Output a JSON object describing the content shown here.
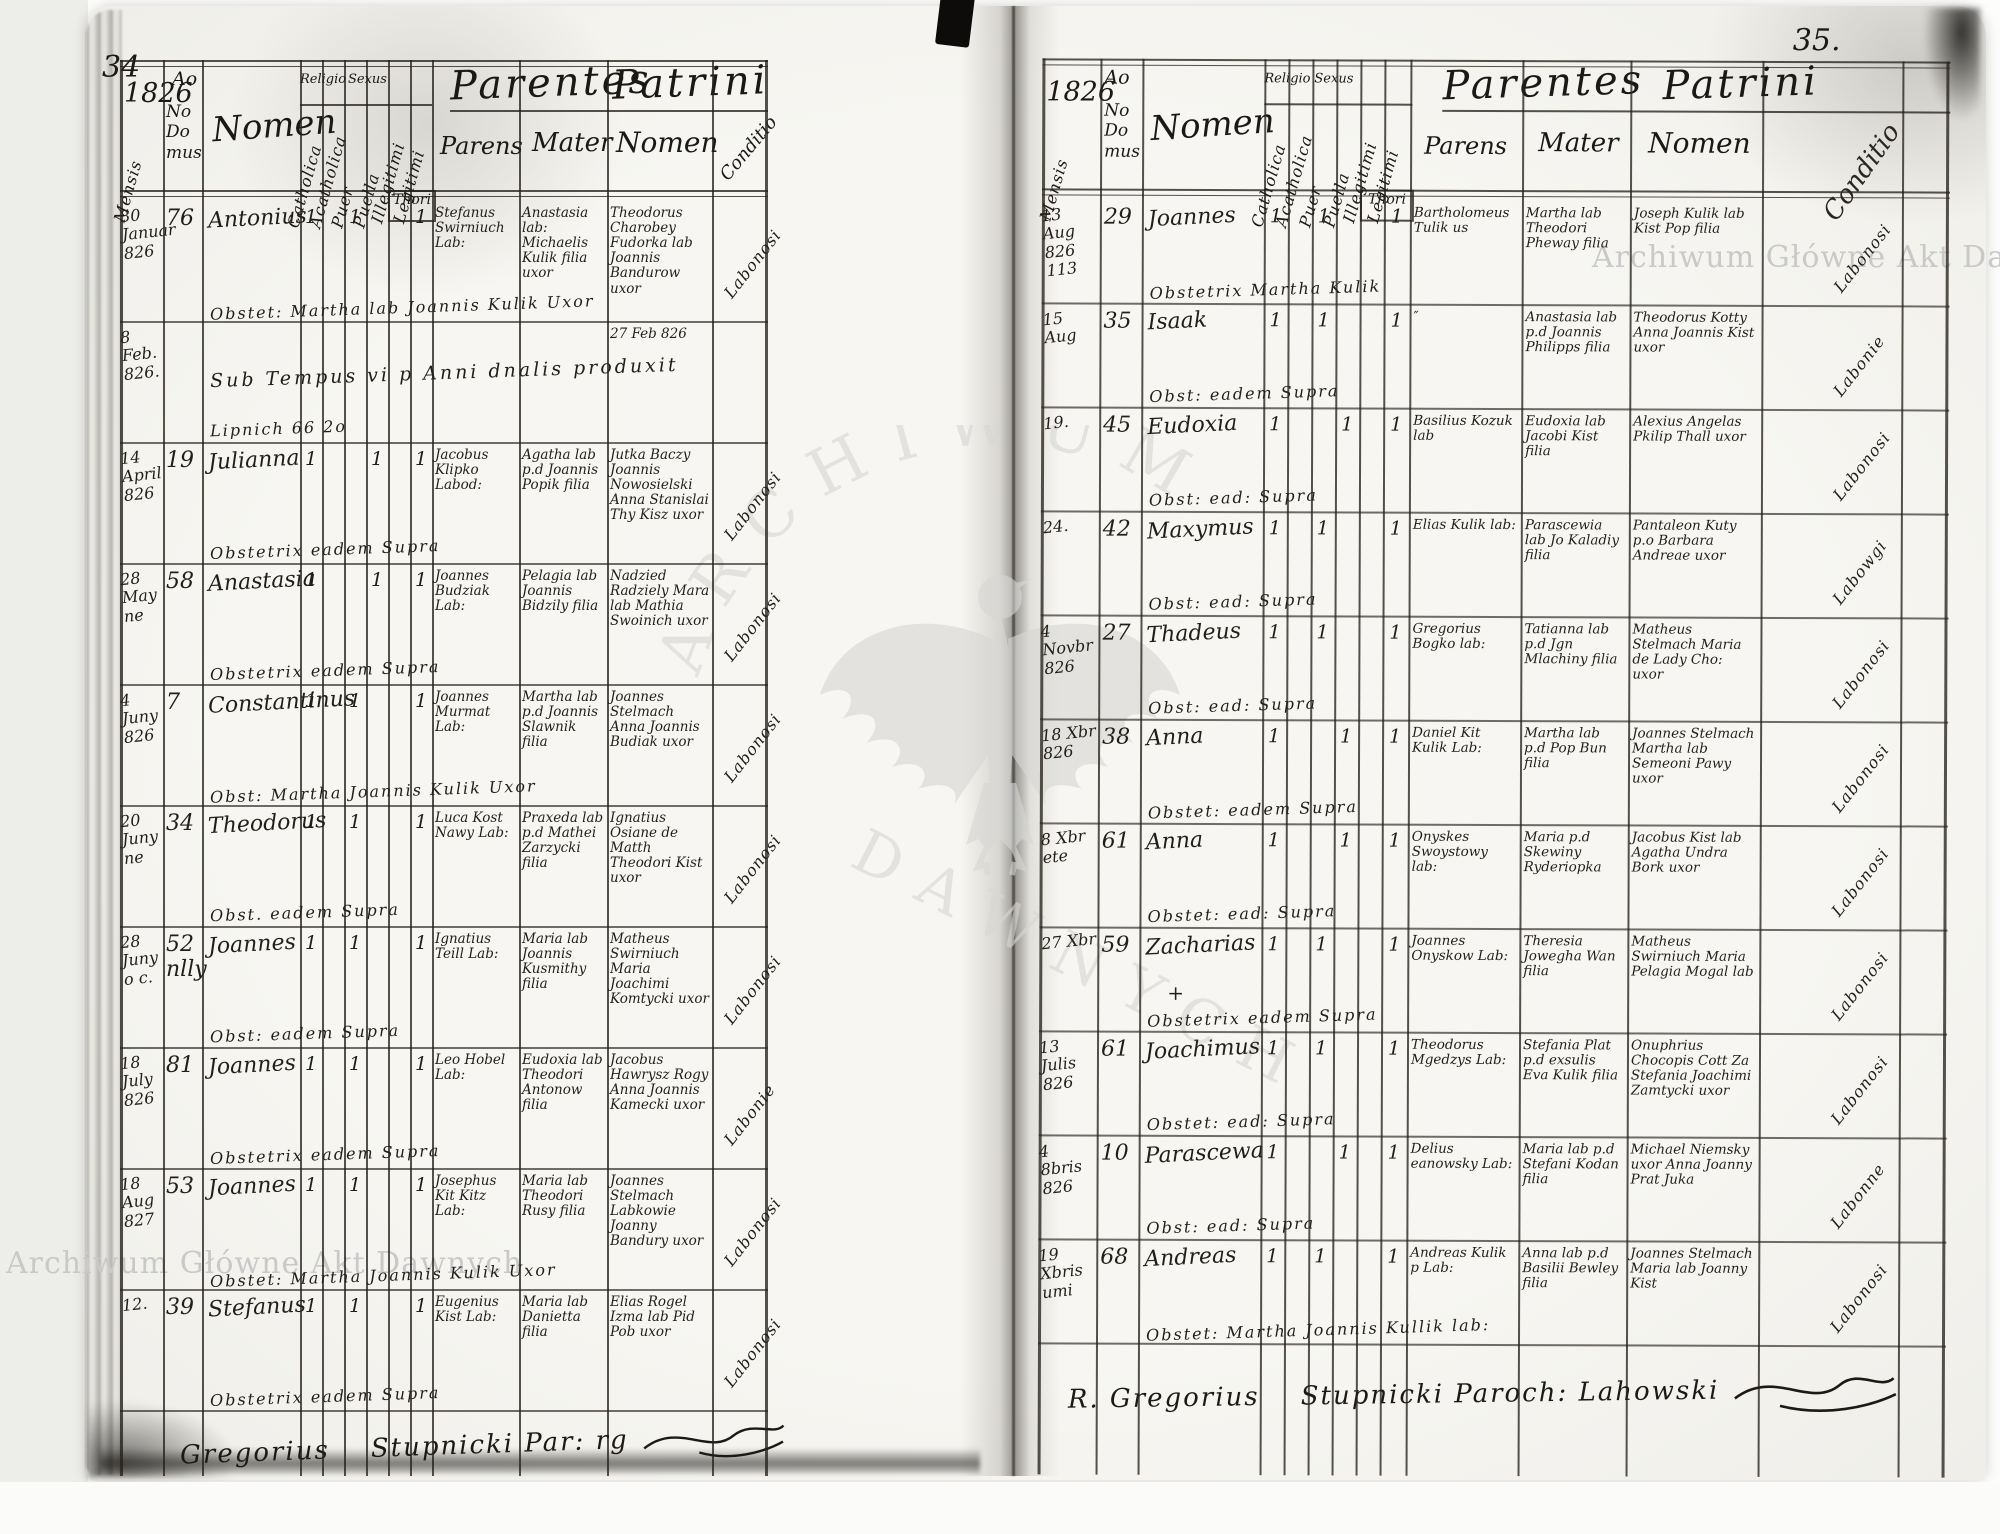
{
  "header": {
    "year": "1826",
    "anno": "Ao",
    "mensis": "Mensis",
    "domus": "No\nDo\nmus",
    "nomen": "Nomen",
    "religio": "Religio",
    "catholica": "Catholica",
    "acatholica": "Acatholica",
    "sexus": "Sexus",
    "puer": "Puer",
    "puella": "Puella",
    "illegitimi": "Illegitimi",
    "legitimi": "Legitimi",
    "thori": "Thori",
    "parentes": "Parentes",
    "parens": "Parens",
    "mater": "Mater",
    "patrini": "Patrini",
    "nomen2": "Nomen",
    "conditio": "Conditio"
  },
  "watermarks": {
    "right_text": "Archiwum Główne Akt Dawnych",
    "bottom_left_text": "Archiwum Główne Akt Dawnych",
    "logo_top": "ARCHIWUM",
    "logo_bottom": "DAWNYCH",
    "color": "#c9c9c9"
  },
  "left_page": {
    "page_number": "34",
    "signature_name": "Gregorius",
    "signature_rest": "Stupnicki Par: rg",
    "entries": [
      {
        "date": "30\nJanuar\n826",
        "house": "76",
        "name": "Antonius",
        "cross": "",
        "marks": [
          "1",
          "",
          "1",
          "",
          "",
          "1"
        ],
        "father": "Stefanus Swirniuch Lab:",
        "mother": "Anastasia lab: Michaelis Kulik filia uxor",
        "patrini": "Theodorus Charobey Fudorka lab Joannis Bandurow uxor",
        "conditio": "Labonosi",
        "note": "Obstet: Martha lab Joannis Kulik Uxor",
        "wide_note": ""
      },
      {
        "date": "8 Feb.\n826.",
        "house": "",
        "name": "",
        "cross": "",
        "marks": [
          "",
          "",
          "",
          "",
          "",
          ""
        ],
        "father": "",
        "mother": "",
        "patrini": "27 Feb 826",
        "conditio": "",
        "note": "Lipnich 66 2o",
        "wide_note": "Sub Tempus vi p Anni dnalis produxit"
      },
      {
        "date": "14\nApril\n826",
        "house": "19",
        "name": "Julianna",
        "cross": "",
        "marks": [
          "1",
          "",
          "",
          "1",
          "",
          "1"
        ],
        "father": "Jacobus Klipko Labod:",
        "mother": "Agatha lab p.d Joannis Popik filia",
        "patrini": "Jutka Baczy Joannis Nowosielski Anna Stanislai Thy Kisz uxor",
        "conditio": "Labonosi",
        "note": "Obstetrix eadem Supra",
        "wide_note": ""
      },
      {
        "date": "28\nMay\nne",
        "house": "58",
        "name": "Anastasia",
        "cross": "",
        "marks": [
          "1",
          "",
          "",
          "1",
          "",
          "1"
        ],
        "father": "Joannes Budziak Lab:",
        "mother": "Pelagia lab Joannis Bidzily filia",
        "patrini": "Nadzied Radziely Mara lab Mathia Swoinich uxor",
        "conditio": "Labonosi",
        "note": "Obstetrix eadem Supra",
        "wide_note": ""
      },
      {
        "date": "4\nJuny\n826",
        "house": "7",
        "name": "Constantinus",
        "cross": "",
        "marks": [
          "1",
          "",
          "1",
          "",
          "",
          "1"
        ],
        "father": "Joannes Murmat Lab:",
        "mother": "Martha lab p.d Joannis Slawnik filia",
        "patrini": "Joannes Stelmach Anna Joannis Budiak uxor",
        "conditio": "Labonosi",
        "note": "Obst: Martha Joannis Kulik Uxor",
        "wide_note": ""
      },
      {
        "date": "20\nJuny\nne",
        "house": "34",
        "name": "Theodorus",
        "cross": "",
        "marks": [
          "1",
          "",
          "1",
          "",
          "",
          "1"
        ],
        "father": "Luca Kost Nawy Lab:",
        "mother": "Praxeda lab p.d Mathei Zarzycki filia",
        "patrini": "Ignatius Osiane de Matth Theodori Kist uxor",
        "conditio": "Labonosi",
        "note": "Obst. eadem Supra",
        "wide_note": ""
      },
      {
        "date": "28\nJuny\no c.",
        "house": "52\nnlly",
        "name": "Joannes",
        "cross": "",
        "marks": [
          "1",
          "",
          "1",
          "",
          "",
          "1"
        ],
        "father": "Ignatius Teill Lab:",
        "mother": "Maria lab Joannis Kusmithy filia",
        "patrini": "Matheus Swirniuch Maria Joachimi Komtycki uxor",
        "conditio": "Labonosi",
        "note": "Obst: eadem Supra",
        "wide_note": ""
      },
      {
        "date": "18\nJuly\n826",
        "house": "81",
        "name": "Joannes",
        "cross": "",
        "marks": [
          "1",
          "",
          "1",
          "",
          "",
          "1"
        ],
        "father": "Leo Hobel Lab:",
        "mother": "Eudoxia lab Theodori Antonow filia",
        "patrini": "Jacobus Hawrysz Rogy Anna Joannis Kamecki uxor",
        "conditio": "Labonie",
        "note": "Obstetrix eadem Supra",
        "wide_note": ""
      },
      {
        "date": "18 Aug\n827",
        "house": "53",
        "name": "Joannes",
        "cross": "",
        "marks": [
          "1",
          "",
          "1",
          "",
          "",
          "1"
        ],
        "father": "Josephus Kit Kitz Lab:",
        "mother": "Maria lab Theodori Rusy filia",
        "patrini": "Joannes Stelmach Labkowie Joanny Bandury uxor",
        "conditio": "Labonosi",
        "note": "Obstet: Martha Joannis Kulik Uxor",
        "wide_note": ""
      },
      {
        "date": "12.",
        "house": "39",
        "name": "Stefanus",
        "cross": "",
        "marks": [
          "1",
          "",
          "1",
          "",
          "",
          "1"
        ],
        "father": "Eugenius Kist Lab:",
        "mother": "Maria lab Danietta filia",
        "patrini": "Elias Rogel Izma lab Pid Pob uxor",
        "conditio": "Labonosi",
        "note": "Obstetrix eadem Supra",
        "wide_note": ""
      }
    ]
  },
  "right_page": {
    "page_number": "35.",
    "signature_name": "R. Gregorius",
    "signature_rest": "Stupnicki Paroch: Lahowski",
    "entries": [
      {
        "date": "13 Aug\n826\n113",
        "house": "29",
        "name": "Joannes",
        "cross": "",
        "marks": [
          "1",
          "",
          "1",
          "",
          "",
          "1"
        ],
        "father": "Bartholomeus Tulik us",
        "mother": "Martha lab Theodori Pheway filia",
        "patrini": "Joseph Kulik lab Kist Pop filia",
        "conditio": "Labonosi",
        "note": "Obstetrix Martha Kulik",
        "wide_note": ""
      },
      {
        "date": "15\nAug",
        "house": "35",
        "name": "Isaak",
        "cross": "",
        "marks": [
          "1",
          "",
          "1",
          "",
          "",
          "1"
        ],
        "father": "″",
        "mother": "Anastasia lab p.d Joannis Philipps filia",
        "patrini": "Theodorus Kotty Anna Joannis Kist uxor",
        "conditio": "Labonie",
        "note": "Obst: eadem Supra",
        "wide_note": ""
      },
      {
        "date": "19.",
        "house": "45",
        "name": "Eudoxia",
        "cross": "",
        "marks": [
          "1",
          "",
          "",
          "1",
          "",
          "1"
        ],
        "father": "Basilius Kozuk lab",
        "mother": "Eudoxia lab Jacobi Kist filia",
        "patrini": "Alexius Angelas Pkilip Thall uxor",
        "conditio": "Labonosi",
        "note": "Obst: ead: Supra",
        "wide_note": ""
      },
      {
        "date": "24.",
        "house": "42",
        "name": "Maxymus",
        "cross": "",
        "marks": [
          "1",
          "",
          "1",
          "",
          "",
          "1"
        ],
        "father": "Elias Kulik lab:",
        "mother": "Parascewia lab Jo Kaladiy filia",
        "patrini": "Pantaleon Kuty p.o Barbara Andreae uxor",
        "conditio": "Labowgi",
        "note": "Obst: ead: Supra",
        "wide_note": ""
      },
      {
        "date": "4 Novbr\n826",
        "house": "27",
        "name": "Thadeus",
        "cross": "",
        "marks": [
          "1",
          "",
          "1",
          "",
          "",
          "1"
        ],
        "father": "Gregorius Bogko lab:",
        "mother": "Tatianna lab p.d Jgn Mlachiny filia",
        "patrini": "Matheus Stelmach Maria de Lady Cho: uxor",
        "conditio": "Labonosi",
        "note": "Obst: ead: Supra",
        "wide_note": ""
      },
      {
        "date": "18 Xbr\n826",
        "house": "38",
        "name": "Anna",
        "cross": "",
        "marks": [
          "1",
          "",
          "",
          "1",
          "",
          "1"
        ],
        "father": "Daniel Kit Kulik Lab:",
        "mother": "Martha lab p.d Pop Bun filia",
        "patrini": "Joannes Stelmach Martha lab Semeoni Pawy uxor",
        "conditio": "Labonosi",
        "note": "Obstet: eadem Supra",
        "wide_note": ""
      },
      {
        "date": "8 Xbr\nete",
        "house": "61",
        "name": "Anna",
        "cross": "",
        "marks": [
          "1",
          "",
          "",
          "1",
          "",
          "1"
        ],
        "father": "Onyskes Swoystowy lab:",
        "mother": "Maria p.d Skewiny Ryderiopka",
        "patrini": "Jacobus Kist lab Agatha Undra Bork uxor",
        "conditio": "Labonosi",
        "note": "Obstet: ead: Supra",
        "wide_note": ""
      },
      {
        "date": "27 Xbr",
        "house": "59",
        "name": "Zacharias",
        "cross": "+",
        "marks": [
          "1",
          "",
          "1",
          "",
          "",
          "1"
        ],
        "father": "Joannes Onyskow Lab:",
        "mother": "Theresia Jowegha Wan filia",
        "patrini": "Matheus Swirniuch Maria Pelagia Mogal lab",
        "conditio": "Labonosi",
        "note": "Obstetrix eadem Supra",
        "wide_note": ""
      },
      {
        "date": "13 Julis\n826",
        "house": "61",
        "name": "Joachimus",
        "cross": "",
        "marks": [
          "1",
          "",
          "1",
          "",
          "",
          "1"
        ],
        "father": "Theodorus Mgedzys Lab:",
        "mother": "Stefania Plat p.d exsulis Eva Kulik filia",
        "patrini": "Onuphrius Chocopis Cott Za Stefania Joachimi Zamtycki uxor",
        "conditio": "Labonosi",
        "note": "Obstet: ead: Supra",
        "wide_note": ""
      },
      {
        "date": "4 8bris\n826",
        "house": "10",
        "name": "Parascewa",
        "cross": "",
        "marks": [
          "1",
          "",
          "",
          "1",
          "",
          "1"
        ],
        "father": "Delius eanowsky Lab:",
        "mother": "Maria lab p.d Stefani Kodan filia",
        "patrini": "Michael Niemsky uxor Anna Joanny Prat Juka",
        "conditio": "Labonne",
        "note": "Obst: ead: Supra",
        "wide_note": ""
      },
      {
        "date": "19 Xbris\numi",
        "house": "68",
        "name": "Andreas",
        "cross": "",
        "marks": [
          "1",
          "",
          "1",
          "",
          "",
          "1"
        ],
        "father": "Andreas Kulik p Lab:",
        "mother": "Anna lab p.d Basilii Bewley filia",
        "patrini": "Joannes Stelmach Maria lab Joanny Kist",
        "conditio": "Labonosi",
        "note": "Obstet: Martha Joannis Kullik lab:",
        "wide_note": ""
      }
    ]
  }
}
